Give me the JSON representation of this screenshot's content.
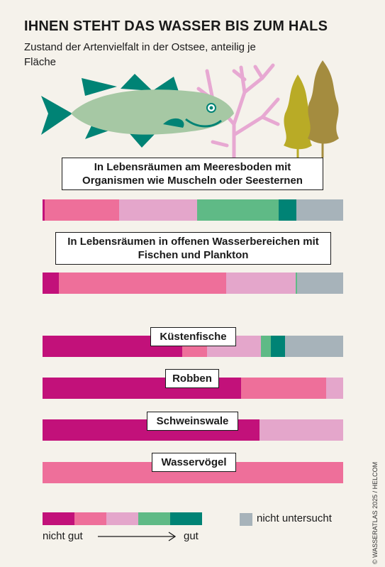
{
  "title": "IHNEN STEHT DAS WASSER BIS ZUM HALS",
  "subtitle": "Zustand der Artenvielfalt in der Ostsee, anteilig je Fläche",
  "credit": "© WASSERATLAS 2025 / HELCOM",
  "colors": {
    "category_1": "#c2117a",
    "category_2": "#ee6f9a",
    "category_3": "#e4a6cb",
    "category_4": "#5fba86",
    "category_5": "#008375",
    "nicht_untersucht": "#a7b3ba"
  },
  "chart_data": {
    "type": "bar",
    "orientation": "horizontal",
    "stacked": true,
    "unit": "share of area (%)",
    "xlim": [
      0,
      100
    ],
    "categories": [
      "In Lebensräumen am Meeresboden mit Organismen wie Muscheln oder Seesternen",
      "In Lebensräumen in offenen Wasserbereichen mit Fischen und Plankton",
      "Küstenfische",
      "Robben",
      "Schweinswale",
      "Wasservögel"
    ],
    "series": [
      {
        "values": [
          0.7,
          5.5,
          46.5,
          66,
          72.2,
          0
        ]
      },
      {
        "values": [
          24.8,
          55.7,
          8.2,
          28.3,
          0,
          100
        ]
      },
      {
        "values": [
          26,
          22.9,
          18,
          5.7,
          27.8,
          0
        ]
      },
      {
        "values": [
          27.1,
          0.5,
          3.3,
          0,
          0,
          0
        ]
      },
      {
        "values": [
          5.9,
          0,
          4.7,
          0,
          0,
          0
        ]
      },
      {
        "name": "nicht untersucht",
        "values": [
          15.5,
          15.4,
          19.3,
          0,
          0,
          0
        ]
      }
    ],
    "legend": {
      "scale_low": "nicht gut",
      "scale_high": "gut",
      "not_studied": "nicht untersucht"
    },
    "legend_position": "bottom",
    "grid": false
  }
}
